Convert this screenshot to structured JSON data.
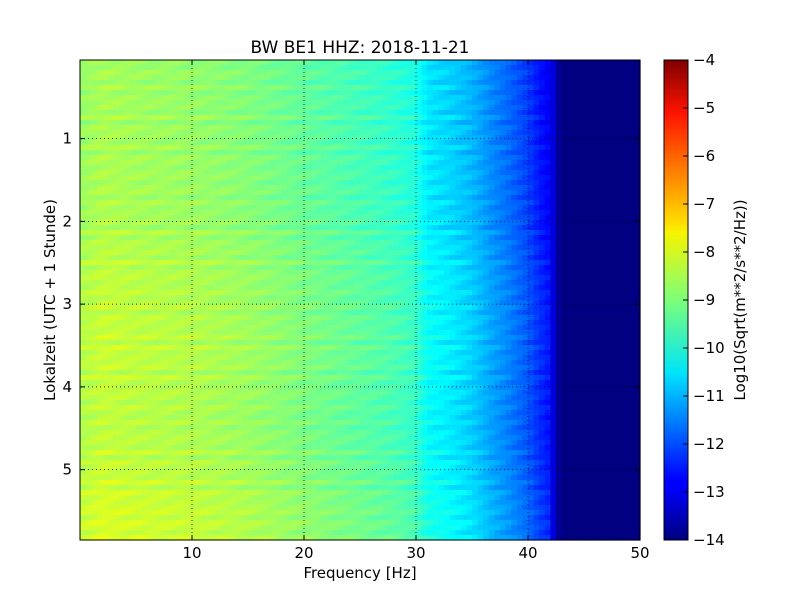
{
  "chart_data": {
    "type": "heatmap",
    "title": "BW BE1 HHZ: 2018-11-21",
    "xlabel": "Frequency [Hz]",
    "ylabel": "Lokalzeit (UTC + 1 Stunde)",
    "colorbar_label": "Log10(Sqrt(m**2/s**2/Hz))",
    "xlim": [
      0,
      50
    ],
    "ylim": [
      5.85,
      0.05
    ],
    "x_ticks": [
      10,
      20,
      30,
      40,
      50
    ],
    "x_tick_labels": [
      "10",
      "20",
      "30",
      "40",
      "50"
    ],
    "y_ticks": [
      1,
      2,
      3,
      4,
      5
    ],
    "y_tick_labels": [
      "1",
      "2",
      "3",
      "4",
      "5"
    ],
    "grid": true,
    "colormap": "jet",
    "color_range": [
      -14,
      -4
    ],
    "colorbar_ticks": [
      -4,
      -5,
      -6,
      -7,
      -8,
      -9,
      -10,
      -11,
      -12,
      -13,
      -14
    ],
    "colorbar_tick_labels": [
      "−4",
      "−5",
      "−6",
      "−7",
      "−8",
      "−9",
      "−10",
      "−11",
      "−12",
      "−13",
      "−14"
    ],
    "frequency_profile": {
      "frequency_hz": [
        0,
        2,
        5,
        10,
        15,
        20,
        25,
        28,
        30,
        31,
        33,
        35,
        37,
        38,
        40,
        41,
        42,
        42.5,
        43,
        45,
        50
      ],
      "log10_psd": [
        -8.6,
        -8.4,
        -8.5,
        -8.6,
        -8.8,
        -9.1,
        -9.4,
        -9.6,
        -9.8,
        -10.3,
        -10.5,
        -10.8,
        -11.3,
        -11.5,
        -12.0,
        -12.4,
        -12.7,
        -13.5,
        -14.0,
        -14.0,
        -14.0
      ]
    },
    "time_profile": {
      "local_time_h": [
        0.05,
        1.0,
        2.0,
        2.5,
        3.0,
        3.5,
        4.0,
        4.5,
        5.0,
        5.5,
        5.85
      ],
      "offset": [
        -0.2,
        -0.15,
        -0.1,
        0.05,
        0.1,
        0.15,
        0.1,
        0.05,
        0.15,
        0.3,
        0.3
      ]
    }
  }
}
